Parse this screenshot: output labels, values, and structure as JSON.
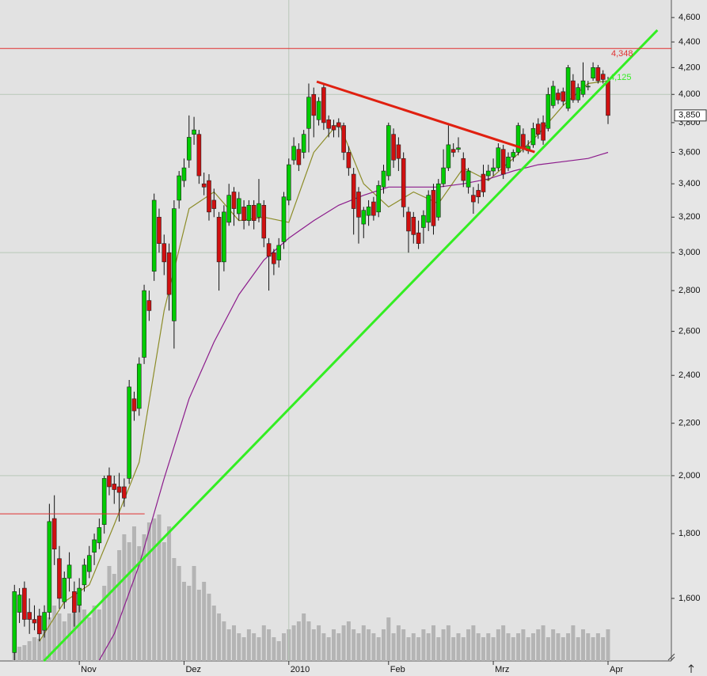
{
  "chart_data": {
    "type": "candlestick",
    "log_scale": true,
    "xlim": [
      -2.9,
      131.7
    ],
    "ylim": [
      1428,
      4749
    ],
    "xticks": [
      {
        "value": 13,
        "label": "Nov"
      },
      {
        "value": 34,
        "label": "Dez"
      },
      {
        "value": 55,
        "label": "2010"
      },
      {
        "value": 75,
        "label": "Feb"
      },
      {
        "value": 96,
        "label": "Mrz"
      },
      {
        "value": 119,
        "label": "Apr"
      }
    ],
    "yticks": [
      {
        "value": 1600,
        "label": "1,600"
      },
      {
        "value": 1800,
        "label": "1,800"
      },
      {
        "value": 2000,
        "label": "2,000"
      },
      {
        "value": 2200,
        "label": "2,200"
      },
      {
        "value": 2400,
        "label": "2,400"
      },
      {
        "value": 2600,
        "label": "2,600"
      },
      {
        "value": 2800,
        "label": "2,800"
      },
      {
        "value": 3000,
        "label": "3,000"
      },
      {
        "value": 3200,
        "label": "3,200"
      },
      {
        "value": 3400,
        "label": "3,400"
      },
      {
        "value": 3600,
        "label": "3,600"
      },
      {
        "value": 3800,
        "label": "3,800"
      },
      {
        "value": 4000,
        "label": "4,000"
      },
      {
        "value": 4200,
        "label": "4,200"
      },
      {
        "value": 4400,
        "label": "4,400"
      },
      {
        "value": 4600,
        "label": "4,600"
      }
    ],
    "grid_every": 1000,
    "year_grid": true,
    "up_color": "#00cc00",
    "down_color": "#d01010",
    "volume_color": "#b4b4b4",
    "candles": [
      [
        1450,
        1640,
        1430,
        1620
      ],
      [
        1560,
        1630,
        1530,
        1610
      ],
      [
        1630,
        1650,
        1520,
        1540
      ],
      [
        1560,
        1600,
        1500,
        1540
      ],
      [
        1540,
        1580,
        1510,
        1530
      ],
      [
        1550,
        1570,
        1480,
        1500
      ],
      [
        1510,
        1580,
        1490,
        1560
      ],
      [
        1560,
        1900,
        1540,
        1840
      ],
      [
        1850,
        1930,
        1700,
        1750
      ],
      [
        1720,
        1760,
        1570,
        1600
      ],
      [
        1590,
        1680,
        1570,
        1660
      ],
      [
        1660,
        1740,
        1620,
        1700
      ],
      [
        1620,
        1650,
        1520,
        1560
      ],
      [
        1580,
        1660,
        1560,
        1630
      ],
      [
        1640,
        1720,
        1620,
        1700
      ],
      [
        1680,
        1760,
        1660,
        1730
      ],
      [
        1740,
        1800,
        1700,
        1780
      ],
      [
        1770,
        1850,
        1750,
        1820
      ],
      [
        1830,
        2000,
        1800,
        1990
      ],
      [
        2000,
        2030,
        1930,
        1960
      ],
      [
        1970,
        2000,
        1900,
        1950
      ],
      [
        1960,
        2010,
        1840,
        1940
      ],
      [
        1960,
        1990,
        1890,
        1920
      ],
      [
        1990,
        2380,
        1970,
        2350
      ],
      [
        2300,
        2330,
        2210,
        2250
      ],
      [
        2260,
        2480,
        2230,
        2450
      ],
      [
        2480,
        2830,
        2450,
        2800
      ],
      [
        2750,
        2800,
        2650,
        2700
      ],
      [
        2900,
        3340,
        2850,
        3300
      ],
      [
        3200,
        3250,
        3000,
        3050
      ],
      [
        3050,
        3100,
        2880,
        2950
      ],
      [
        3000,
        3050,
        2700,
        2780
      ],
      [
        2650,
        3300,
        2520,
        3250
      ],
      [
        3300,
        3480,
        3250,
        3450
      ],
      [
        3420,
        3560,
        3380,
        3500
      ],
      [
        3550,
        3850,
        3500,
        3700
      ],
      [
        3720,
        3840,
        3650,
        3750
      ],
      [
        3720,
        3750,
        3400,
        3450
      ],
      [
        3400,
        3470,
        3330,
        3380
      ],
      [
        3420,
        3460,
        3180,
        3230
      ],
      [
        3300,
        3370,
        3200,
        3250
      ],
      [
        3200,
        3230,
        2800,
        2950
      ],
      [
        2950,
        3270,
        2900,
        3230
      ],
      [
        3170,
        3400,
        3150,
        3330
      ],
      [
        3350,
        3380,
        3150,
        3250
      ],
      [
        3220,
        3350,
        3180,
        3310
      ],
      [
        3260,
        3300,
        3130,
        3180
      ],
      [
        3180,
        3300,
        3150,
        3270
      ],
      [
        3270,
        3300,
        3130,
        3180
      ],
      [
        3200,
        3430,
        3170,
        3280
      ],
      [
        3270,
        3300,
        3030,
        3080
      ],
      [
        3050,
        3080,
        2800,
        2980
      ],
      [
        3000,
        3020,
        2880,
        2940
      ],
      [
        2960,
        3080,
        2920,
        3040
      ],
      [
        3060,
        3350,
        3020,
        3320
      ],
      [
        3300,
        3560,
        3270,
        3520
      ],
      [
        3550,
        3700,
        3520,
        3640
      ],
      [
        3620,
        3660,
        3480,
        3520
      ],
      [
        3600,
        3750,
        3560,
        3720
      ],
      [
        3760,
        4080,
        3600,
        3980
      ],
      [
        4000,
        4050,
        3700,
        3850
      ],
      [
        3820,
        3980,
        3780,
        3950
      ],
      [
        4050,
        4080,
        3750,
        3800
      ],
      [
        3820,
        3850,
        3700,
        3760
      ],
      [
        3780,
        3820,
        3700,
        3750
      ],
      [
        3800,
        3830,
        3700,
        3770
      ],
      [
        3780,
        3800,
        3550,
        3600
      ],
      [
        3600,
        3640,
        3450,
        3500
      ],
      [
        3460,
        3500,
        3100,
        3250
      ],
      [
        3350,
        3380,
        3050,
        3200
      ],
      [
        3160,
        3260,
        3080,
        3240
      ],
      [
        3210,
        3300,
        3150,
        3260
      ],
      [
        3290,
        3320,
        3180,
        3210
      ],
      [
        3230,
        3420,
        3200,
        3390
      ],
      [
        3380,
        3520,
        3340,
        3480
      ],
      [
        3450,
        3800,
        3420,
        3780
      ],
      [
        3720,
        3760,
        3500,
        3550
      ],
      [
        3650,
        3700,
        3480,
        3560
      ],
      [
        3560,
        3600,
        3200,
        3260
      ],
      [
        3230,
        3260,
        3000,
        3120
      ],
      [
        3200,
        3230,
        3050,
        3100
      ],
      [
        3110,
        3180,
        3020,
        3050
      ],
      [
        3140,
        3240,
        3050,
        3210
      ],
      [
        3170,
        3360,
        3120,
        3330
      ],
      [
        3360,
        3400,
        3100,
        3150
      ],
      [
        3200,
        3430,
        3180,
        3400
      ],
      [
        3400,
        3620,
        3380,
        3500
      ],
      [
        3500,
        3780,
        3480,
        3650
      ],
      [
        3620,
        3660,
        3570,
        3600
      ],
      [
        3620,
        3700,
        3600,
        3630
      ],
      [
        3560,
        3600,
        3380,
        3420
      ],
      [
        3380,
        3500,
        3340,
        3480
      ],
      [
        3330,
        3380,
        3220,
        3290
      ],
      [
        3360,
        3400,
        3280,
        3320
      ],
      [
        3460,
        3520,
        3320,
        3350
      ],
      [
        3450,
        3520,
        3420,
        3480
      ],
      [
        3480,
        3560,
        3450,
        3500
      ],
      [
        3500,
        3660,
        3480,
        3630
      ],
      [
        3620,
        3650,
        3430,
        3460
      ],
      [
        3500,
        3600,
        3480,
        3570
      ],
      [
        3570,
        3620,
        3540,
        3600
      ],
      [
        3600,
        3800,
        3580,
        3780
      ],
      [
        3720,
        3760,
        3600,
        3630
      ],
      [
        3610,
        3680,
        3590,
        3640
      ],
      [
        3650,
        3800,
        3630,
        3760
      ],
      [
        3790,
        3830,
        3690,
        3720
      ],
      [
        3800,
        3850,
        3650,
        3680
      ],
      [
        3760,
        4050,
        3740,
        4000
      ],
      [
        3920,
        4100,
        3900,
        4060
      ],
      [
        4010,
        4040,
        3930,
        3960
      ],
      [
        4020,
        4050,
        3920,
        3950
      ],
      [
        3900,
        4220,
        3880,
        4200
      ],
      [
        4100,
        4150,
        3940,
        3960
      ],
      [
        3960,
        4080,
        3940,
        4050
      ],
      [
        4000,
        4240,
        3980,
        4100
      ],
      [
        4060,
        4100,
        4030,
        4060
      ],
      [
        4120,
        4240,
        4100,
        4200
      ],
      [
        4200,
        4220,
        4080,
        4100
      ],
      [
        4150,
        4180,
        4080,
        4110
      ],
      [
        4100,
        4130,
        3790,
        3850
      ]
    ],
    "volume": [
      12,
      18,
      20,
      25,
      30,
      28,
      40,
      55,
      70,
      60,
      50,
      60,
      85,
      75,
      65,
      55,
      70,
      65,
      95,
      120,
      110,
      140,
      160,
      150,
      170,
      145,
      160,
      175,
      180,
      185,
      150,
      170,
      130,
      120,
      100,
      95,
      120,
      90,
      100,
      85,
      70,
      60,
      50,
      40,
      45,
      35,
      30,
      40,
      35,
      30,
      45,
      40,
      30,
      25,
      35,
      40,
      45,
      50,
      60,
      50,
      40,
      45,
      35,
      30,
      40,
      35,
      45,
      50,
      40,
      35,
      45,
      40,
      35,
      30,
      40,
      55,
      35,
      45,
      40,
      30,
      35,
      30,
      40,
      35,
      45,
      30,
      40,
      45,
      30,
      35,
      30,
      40,
      45,
      35,
      30,
      35,
      30,
      40,
      45,
      35,
      30,
      35,
      40,
      30,
      35,
      40,
      45,
      30,
      40,
      35,
      30,
      35,
      45,
      30,
      40,
      35,
      30,
      35,
      30,
      40
    ],
    "moving_averages": [
      {
        "color": "#8c8c28",
        "x": [
          5,
          10,
          15,
          20,
          25,
          30,
          35,
          40,
          45,
          50,
          55,
          60,
          65,
          70,
          75,
          80,
          85,
          90,
          95,
          100,
          105,
          110,
          115,
          119
        ],
        "values": [
          1480,
          1590,
          1640,
          1830,
          2050,
          2700,
          3250,
          3350,
          3180,
          3200,
          3170,
          3600,
          3800,
          3400,
          3260,
          3350,
          3280,
          3500,
          3420,
          3560,
          3720,
          3920,
          4080,
          4100
        ]
      },
      {
        "color": "#8c1c8c",
        "x": [
          17,
          20,
          25,
          30,
          35,
          40,
          45,
          50,
          55,
          60,
          65,
          70,
          75,
          80,
          85,
          90,
          95,
          100,
          105,
          110,
          115,
          119
        ],
        "values": [
          1430,
          1500,
          1700,
          1990,
          2300,
          2550,
          2780,
          2960,
          3080,
          3180,
          3270,
          3330,
          3380,
          3380,
          3380,
          3400,
          3430,
          3480,
          3520,
          3540,
          3560,
          3600
        ]
      }
    ],
    "trend_lines": [
      {
        "color": "#33ee22",
        "x": [
          5.9,
          128.9
        ],
        "values": [
          1428,
          4496
        ]
      },
      {
        "color": "#e02010",
        "x": [
          60.6,
          104.3
        ],
        "values": [
          4094,
          3602
        ]
      }
    ],
    "levels": [
      {
        "color": "#e03030",
        "value": 4348,
        "label": "4,348"
      },
      {
        "color": "#e03030",
        "value": 1866,
        "x": [
          -2.9,
          26.1
        ]
      }
    ],
    "annotations": [
      {
        "x": 119,
        "value": 4125,
        "label": "4,125",
        "color": "#33ee22"
      }
    ],
    "last_price": {
      "value": 3850,
      "label": "3,850"
    }
  }
}
